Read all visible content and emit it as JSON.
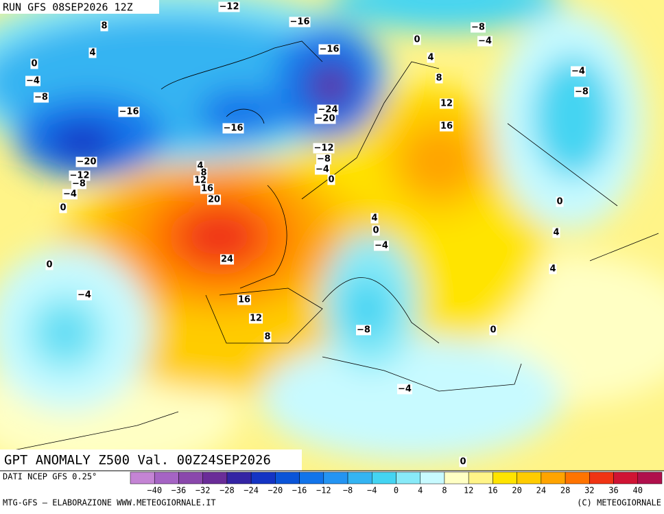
{
  "header": {
    "run": "RUN GFS 08SEP2026 12Z"
  },
  "map": {
    "title": "GPT ANOMALY Z500 Val. 00Z24SEP2026",
    "contour_labels": [
      "8",
      "4",
      "0",
      "−4",
      "−8",
      "−12",
      "−16",
      "−16",
      "−16",
      "−16",
      "−20",
      "−12",
      "−8",
      "−4",
      "0",
      "−24",
      "−20",
      "−12",
      "−8",
      "−4",
      "0",
      "4",
      "8",
      "12",
      "16",
      "20",
      "24",
      "16",
      "12",
      "8",
      "0",
      "−4",
      "0",
      "4",
      "8",
      "12",
      "16",
      "−8",
      "−4",
      "−4",
      "−8",
      "0",
      "4",
      "0",
      "−4",
      "4",
      "4",
      "−8",
      "0",
      "−4",
      "0"
    ]
  },
  "legend": {
    "source": "DATI NCEP GFS 0.25°",
    "colors": [
      "#c484d4",
      "#a564c4",
      "#8a48ac",
      "#6a2c98",
      "#3424a4",
      "#1434c4",
      "#0a54d8",
      "#1274ea",
      "#2494f2",
      "#34b4f2",
      "#44d4f2",
      "#88eaf8",
      "#c8faff",
      "#ffffc4",
      "#fff488",
      "#ffe400",
      "#ffcc00",
      "#ffa400",
      "#ff7400",
      "#f03414",
      "#d01434",
      "#b0104c"
    ],
    "labels": [
      "−40",
      "−36",
      "−32",
      "−28",
      "−24",
      "−20",
      "−16",
      "−12",
      "−8",
      "−4",
      "0",
      "4",
      "8",
      "12",
      "16",
      "20",
      "24",
      "28",
      "32",
      "36",
      "40"
    ]
  },
  "footer": {
    "left": "MTG-GFS — ELABORAZIONE WWW.METEOGIORNALE.IT",
    "right": "(C) METEOGIORNALE"
  }
}
